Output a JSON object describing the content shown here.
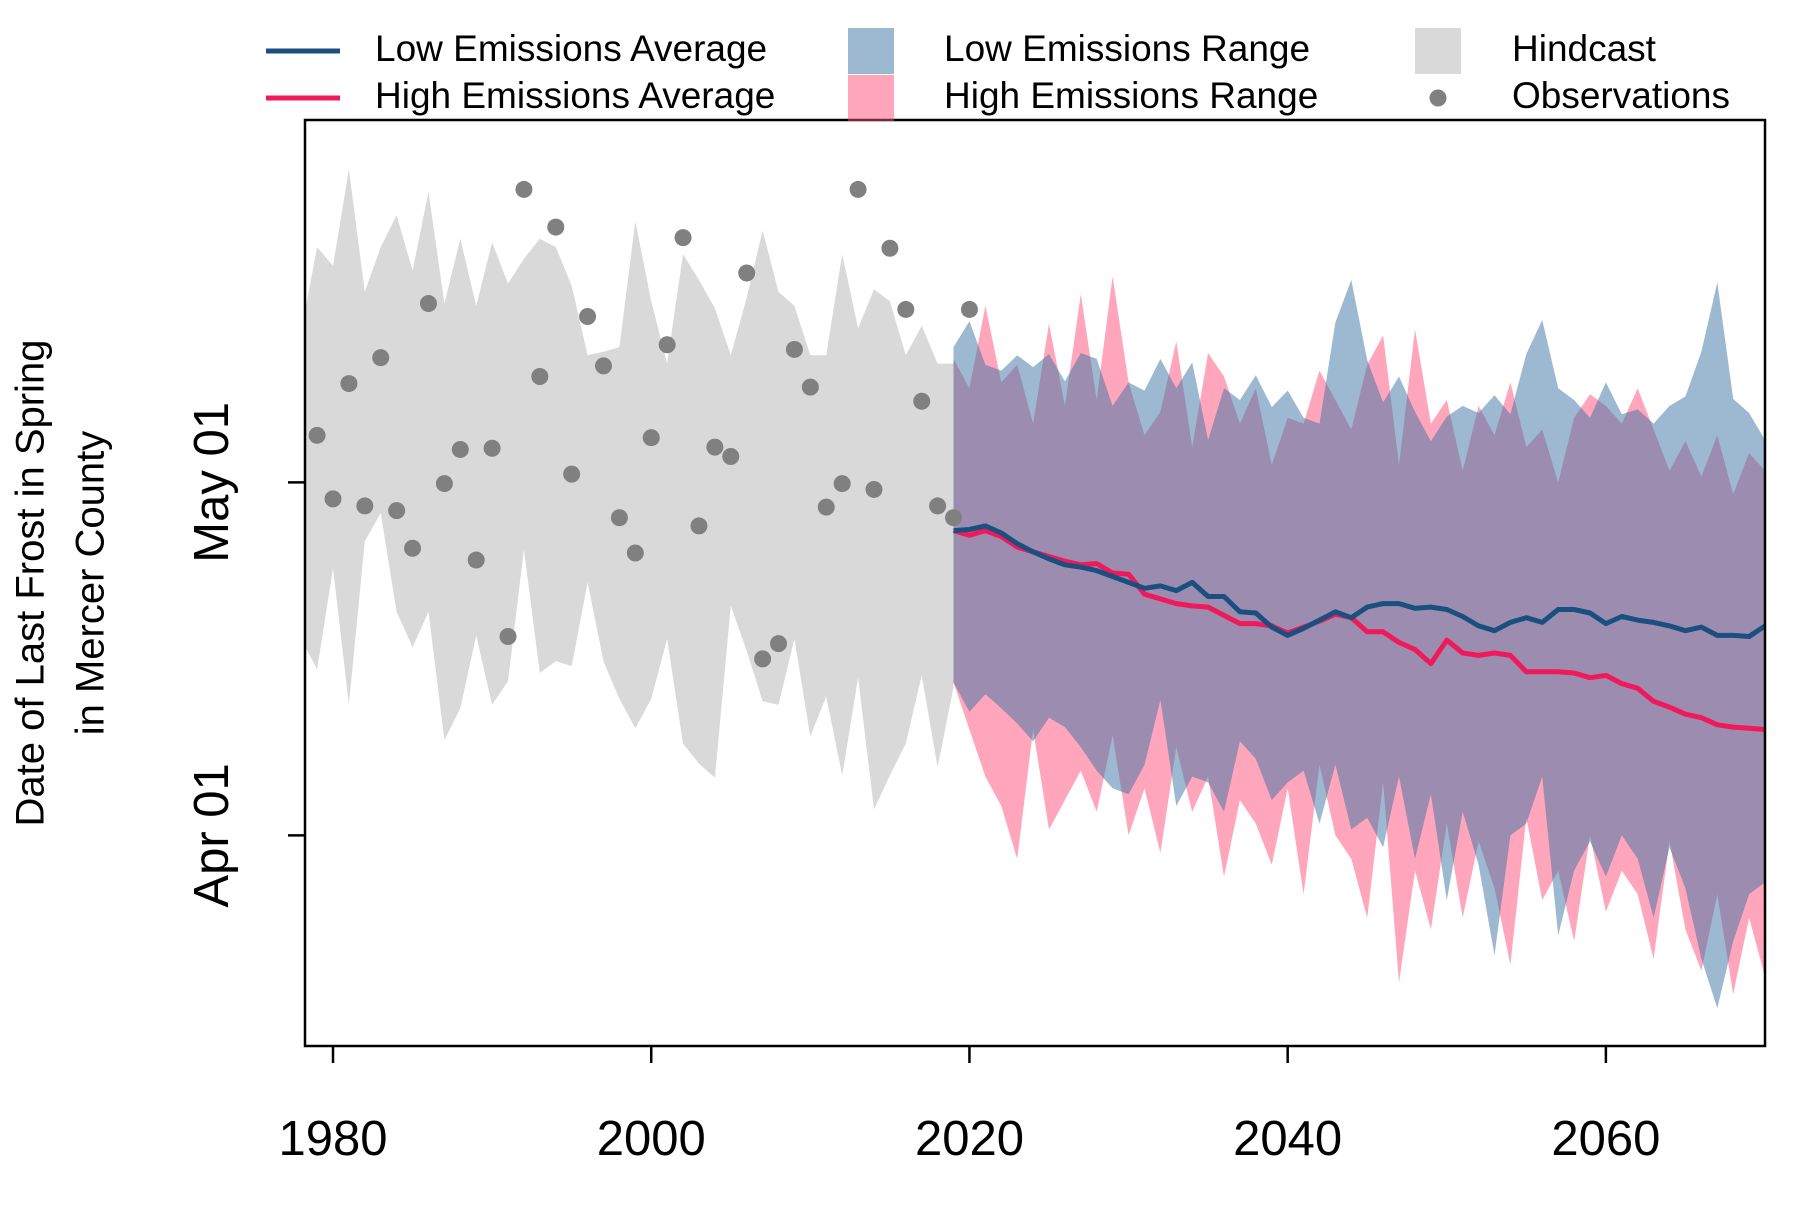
{
  "chart_data": {
    "type": "line",
    "ylabel": [
      "Date of Last Frost in Spring",
      "in Mercer County"
    ],
    "xlim": [
      1978.24,
      2070
    ],
    "ylim": [
      73.1,
      151.8
    ],
    "xticks": [
      1980,
      2000,
      2020,
      2040,
      2060
    ],
    "yticks": [
      {
        "value": 91,
        "label": "Apr 01"
      },
      {
        "value": 121,
        "label": "May 01"
      }
    ],
    "legend": "top",
    "series": [
      {
        "name": "Low Emissions Average",
        "type": "line",
        "color": "#1a4f80",
        "x": [
          2019,
          2020,
          2021,
          2022,
          2023,
          2024,
          2025,
          2026,
          2027,
          2028,
          2029,
          2030,
          2031,
          2032,
          2033,
          2034,
          2035,
          2036,
          2037,
          2038,
          2039,
          2040,
          2041,
          2042,
          2043,
          2044,
          2045,
          2046,
          2047,
          2048,
          2049,
          2050,
          2051,
          2052,
          2053,
          2054,
          2055,
          2056,
          2057,
          2058,
          2059,
          2060,
          2061,
          2062,
          2063,
          2064,
          2065,
          2066,
          2067,
          2068,
          2069,
          2070
        ],
        "values": [
          116.9,
          117.0,
          117.3,
          116.7,
          115.8,
          115.1,
          114.5,
          114.0,
          113.8,
          113.5,
          113.0,
          112.5,
          112.0,
          112.2,
          111.8,
          112.5,
          111.3,
          111.3,
          110.0,
          109.9,
          108.7,
          108.0,
          108.6,
          109.3,
          110.0,
          109.5,
          110.4,
          110.7,
          110.7,
          110.3,
          110.4,
          110.2,
          109.6,
          108.8,
          108.4,
          109.1,
          109.5,
          109.1,
          110.2,
          110.2,
          109.9,
          109.0,
          109.6,
          109.3,
          109.1,
          108.8,
          108.4,
          108.7,
          108.0,
          108.0,
          107.9,
          108.8
        ]
      },
      {
        "name": "High Emissions Average",
        "type": "line",
        "color": "#f0195a",
        "x": [
          2019,
          2020,
          2021,
          2022,
          2023,
          2024,
          2025,
          2026,
          2027,
          2028,
          2029,
          2030,
          2031,
          2032,
          2033,
          2034,
          2035,
          2036,
          2037,
          2038,
          2039,
          2040,
          2041,
          2042,
          2043,
          2044,
          2045,
          2046,
          2047,
          2048,
          2049,
          2050,
          2051,
          2052,
          2053,
          2054,
          2055,
          2056,
          2057,
          2058,
          2059,
          2060,
          2061,
          2062,
          2063,
          2064,
          2065,
          2066,
          2067,
          2068,
          2069,
          2070
        ],
        "values": [
          116.9,
          116.5,
          116.9,
          116.4,
          115.5,
          115.1,
          114.7,
          114.3,
          114.0,
          114.1,
          113.3,
          113.2,
          111.5,
          111.1,
          110.7,
          110.5,
          110.4,
          109.7,
          109.0,
          109.0,
          108.8,
          108.2,
          108.7,
          109.2,
          109.8,
          109.5,
          108.3,
          108.3,
          107.4,
          106.8,
          105.6,
          107.6,
          106.5,
          106.3,
          106.5,
          106.3,
          104.9,
          104.9,
          104.9,
          104.8,
          104.4,
          104.6,
          103.9,
          103.5,
          102.4,
          101.9,
          101.3,
          101.0,
          100.4,
          100.2,
          100.1,
          100.0
        ]
      },
      {
        "name": "Low Emissions Range",
        "type": "band",
        "color": "#3a73a3",
        "alpha": 0.5,
        "x": [
          2019,
          2020,
          2021,
          2022,
          2023,
          2024,
          2025,
          2026,
          2027,
          2028,
          2029,
          2030,
          2031,
          2032,
          2033,
          2034,
          2035,
          2036,
          2037,
          2038,
          2039,
          2040,
          2041,
          2042,
          2043,
          2044,
          2045,
          2046,
          2047,
          2048,
          2049,
          2050,
          2051,
          2052,
          2053,
          2054,
          2055,
          2056,
          2057,
          2058,
          2059,
          2060,
          2061,
          2062,
          2063,
          2064,
          2065,
          2066,
          2067,
          2068,
          2069,
          2070
        ],
        "upper": [
          132.5,
          134.7,
          131.0,
          130.5,
          131.8,
          130.8,
          131.9,
          129.6,
          132.0,
          131.5,
          127.5,
          129.5,
          128.8,
          131.5,
          129.0,
          131.2,
          124.6,
          129.0,
          128.0,
          130.1,
          127.4,
          128.8,
          126.5,
          126.0,
          134.6,
          138.2,
          131.4,
          127.8,
          130.0,
          127.0,
          124.5,
          126.6,
          127.5,
          126.9,
          128.4,
          126.8,
          131.9,
          134.8,
          129.0,
          128.0,
          126.5,
          129.5,
          126.8,
          127.2,
          126.0,
          127.5,
          128.3,
          132.1,
          138.0,
          128.1,
          126.9,
          124.6
        ],
        "lower": [
          104.0,
          101.5,
          103.0,
          101.8,
          100.5,
          99.0,
          101.0,
          100.2,
          98.5,
          96.5,
          95.0,
          94.5,
          97.0,
          102.5,
          93.5,
          96.0,
          95.5,
          93.0,
          99.0,
          97.5,
          94.0,
          95.5,
          96.5,
          92.0,
          97.0,
          91.5,
          92.5,
          90.0,
          96.0,
          89.0,
          94.5,
          85.5,
          93.0,
          88.5,
          80.8,
          91.0,
          92.0,
          96.0,
          82.5,
          88.0,
          90.5,
          87.5,
          91.0,
          89.0,
          84.0,
          90.0,
          86.5,
          80.5,
          76.3,
          82.0,
          86.0,
          87.0
        ]
      },
      {
        "name": "High Emissions Range",
        "type": "band",
        "color": "#ff4d7a",
        "alpha": 0.5,
        "x": [
          2019,
          2020,
          2021,
          2022,
          2023,
          2024,
          2025,
          2026,
          2027,
          2028,
          2029,
          2030,
          2031,
          2032,
          2033,
          2034,
          2035,
          2036,
          2037,
          2038,
          2039,
          2040,
          2041,
          2042,
          2043,
          2044,
          2045,
          2046,
          2047,
          2048,
          2049,
          2050,
          2051,
          2052,
          2053,
          2054,
          2055,
          2056,
          2057,
          2058,
          2059,
          2060,
          2061,
          2062,
          2063,
          2064,
          2065,
          2066,
          2067,
          2068,
          2069,
          2070
        ],
        "upper": [
          131.5,
          129.0,
          136.0,
          129.5,
          131.0,
          126.0,
          134.5,
          127.5,
          137.0,
          128.0,
          138.5,
          129.5,
          125.0,
          127.0,
          133.0,
          124.0,
          132.0,
          130.0,
          126.0,
          129.0,
          122.5,
          126.5,
          126.0,
          130.5,
          128.0,
          125.5,
          131.0,
          133.5,
          122.5,
          134.0,
          126.0,
          128.0,
          122.0,
          127.5,
          125.0,
          129.5,
          124.0,
          125.5,
          121.0,
          126.5,
          128.5,
          127.5,
          126.0,
          129.0,
          125.5,
          122.0,
          124.5,
          121.5,
          125.0,
          120.0,
          123.5,
          122.0
        ],
        "lower": [
          104.0,
          100.0,
          96.0,
          93.5,
          89.0,
          100.0,
          91.5,
          94.0,
          96.5,
          93.0,
          99.5,
          91.0,
          95.0,
          89.5,
          98.5,
          93.0,
          96.0,
          87.5,
          94.0,
          92.0,
          88.5,
          95.0,
          86.0,
          97.0,
          91.0,
          89.0,
          84.0,
          95.5,
          78.5,
          88.0,
          83.0,
          92.0,
          84.0,
          90.5,
          86.5,
          80.0,
          92.5,
          85.5,
          88.0,
          82.0,
          91.0,
          84.5,
          88.0,
          86.0,
          80.5,
          90.5,
          83.0,
          79.5,
          86.0,
          77.5,
          84.0,
          79.0
        ]
      },
      {
        "name": "Hindcast",
        "type": "band",
        "color": "#d9d9d9",
        "alpha": 1,
        "x": [
          1978,
          1979,
          1980,
          1981,
          1982,
          1983,
          1984,
          1985,
          1986,
          1987,
          1988,
          1989,
          1990,
          1991,
          1992,
          1993,
          1994,
          1995,
          1996,
          1997,
          1998,
          1999,
          2000,
          2001,
          2002,
          2003,
          2004,
          2005,
          2006,
          2007,
          2008,
          2009,
          2010,
          2011,
          2012,
          2013,
          2014,
          2015,
          2016,
          2017,
          2018,
          2019
        ],
        "upper": [
          133.8,
          141.0,
          139.4,
          147.6,
          137.2,
          141.0,
          143.7,
          139.0,
          145.7,
          136.2,
          141.7,
          136.0,
          141.4,
          137.9,
          140.0,
          141.7,
          141.0,
          137.7,
          131.8,
          132.1,
          132.5,
          143.2,
          136.4,
          131.1,
          140.4,
          138.2,
          135.8,
          131.8,
          136.7,
          142.4,
          137.2,
          136.0,
          131.8,
          131.8,
          140.4,
          134.1,
          137.4,
          136.4,
          131.8,
          134.3,
          131.1,
          131.1
        ],
        "lower": [
          107.7,
          105.1,
          113.7,
          102.1,
          116.0,
          118.4,
          110.0,
          107.0,
          110.0,
          99.1,
          101.8,
          108.0,
          102.1,
          104.1,
          115.3,
          104.8,
          105.8,
          105.4,
          112.5,
          105.8,
          102.6,
          100.1,
          102.6,
          107.7,
          98.8,
          97.1,
          95.9,
          110.5,
          106.7,
          102.4,
          102.1,
          107.7,
          99.4,
          102.8,
          96.1,
          104.4,
          93.2,
          96.1,
          98.8,
          104.6,
          96.8,
          103.6
        ]
      },
      {
        "name": "Observations",
        "type": "points",
        "color": "#808080",
        "x": [
          1979,
          1980,
          1981,
          1982,
          1983,
          1984,
          1985,
          1986,
          1987,
          1988,
          1989,
          1990,
          1991,
          1992,
          1993,
          1994,
          1995,
          1996,
          1997,
          1998,
          1999,
          2000,
          2001,
          2002,
          2003,
          2004,
          2005,
          2006,
          2007,
          2008,
          2009,
          2010,
          2011,
          2012,
          2013,
          2014,
          2015,
          2016,
          2017,
          2018,
          2019,
          2020
        ],
        "values": [
          125.0,
          119.6,
          129.4,
          119.0,
          131.6,
          118.6,
          115.4,
          136.2,
          120.9,
          123.8,
          114.4,
          123.9,
          107.9,
          145.9,
          130.0,
          142.7,
          121.7,
          135.1,
          130.9,
          118.0,
          115.0,
          124.8,
          132.7,
          141.8,
          117.3,
          124.0,
          123.2,
          138.8,
          106.0,
          107.3,
          132.3,
          129.1,
          118.9,
          120.9,
          145.9,
          120.4,
          140.9,
          135.7,
          127.9,
          119.0,
          118.0,
          135.7
        ]
      }
    ]
  }
}
